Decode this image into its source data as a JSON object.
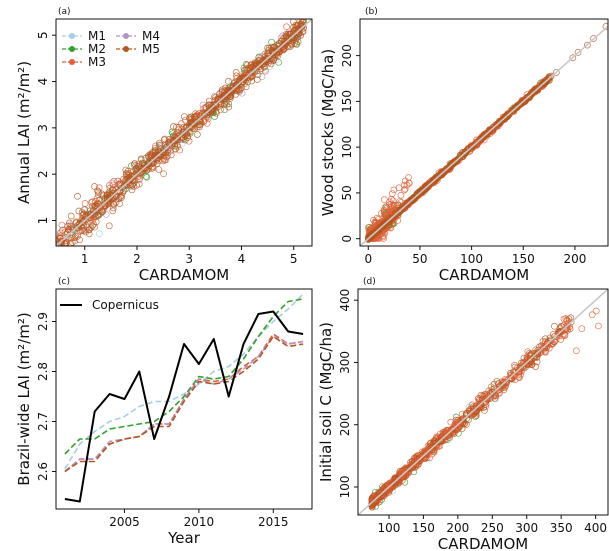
{
  "figure": {
    "colors": {
      "M1": "#a6cee3",
      "M2": "#33a02c",
      "M3": "#e0603a",
      "M4": "#b294c7",
      "M5": "#b5561f",
      "Copernicus": "#000000",
      "one_to_one": "#c8c8c8"
    }
  },
  "chart_data": [
    {
      "type": "scatter",
      "panel": "(a)",
      "xlabel": "CARDAMOM",
      "ylabel": "Annual LAI (m²/m²)",
      "xlim": [
        0.45,
        5.35
      ],
      "ylim": [
        0.45,
        5.35
      ],
      "xticks": [
        1,
        2,
        3,
        4,
        5
      ],
      "yticks": [
        1,
        2,
        3,
        4,
        5
      ],
      "legend": {
        "placement": "top-left",
        "entries": [
          "M1",
          "M2",
          "M3",
          "M4",
          "M5"
        ]
      },
      "reference_line": "1:1",
      "series": [
        {
          "name": "M1",
          "cloud": [
            0.5,
            5.2
          ]
        },
        {
          "name": "M2",
          "cloud": [
            0.5,
            5.2
          ]
        },
        {
          "name": "M3",
          "cloud": [
            0.5,
            5.2
          ]
        },
        {
          "name": "M4",
          "cloud": [
            0.5,
            5.2
          ]
        },
        {
          "name": "M5",
          "cloud": [
            0.5,
            5.2
          ]
        }
      ],
      "scatter_note_points": 0
    },
    {
      "type": "scatter",
      "panel": "(b)",
      "xlabel": "CARDAMOM",
      "ylabel": "Wood stocks (MgC/ha)",
      "xlim": [
        -8,
        232
      ],
      "ylim": [
        -8,
        240
      ],
      "xticks": [
        0,
        50,
        100,
        150,
        200
      ],
      "yticks": [
        0,
        50,
        100,
        150,
        200
      ],
      "reference_line": "1:1"
    },
    {
      "type": "line",
      "panel": "(c)",
      "xlabel": "Year",
      "ylabel": "Brazil-wide LAI (m²/m²)",
      "xlim": [
        2000.4,
        2017.6
      ],
      "ylim": [
        2.525,
        2.965
      ],
      "xticks": [
        2005,
        2010,
        2015
      ],
      "yticks": [
        2.6,
        2.7,
        2.8,
        2.9
      ],
      "legend": {
        "placement": "top-left",
        "entries": [
          "Copernicus"
        ]
      },
      "x": [
        2001,
        2002,
        2003,
        2004,
        2005,
        2006,
        2007,
        2008,
        2009,
        2010,
        2011,
        2012,
        2013,
        2014,
        2015,
        2016,
        2017
      ],
      "series": [
        {
          "name": "Copernicus",
          "values": [
            2.545,
            2.54,
            2.72,
            2.755,
            2.745,
            2.8,
            2.665,
            2.75,
            2.855,
            2.815,
            2.865,
            2.75,
            2.855,
            2.915,
            2.92,
            2.88,
            2.875
          ]
        },
        {
          "name": "M1",
          "values": [
            2.605,
            2.655,
            2.68,
            2.7,
            2.71,
            2.73,
            2.74,
            2.74,
            2.755,
            2.775,
            2.8,
            2.81,
            2.835,
            2.87,
            2.9,
            2.925,
            2.955
          ]
        },
        {
          "name": "M2",
          "values": [
            2.635,
            2.665,
            2.665,
            2.685,
            2.69,
            2.695,
            2.7,
            2.72,
            2.75,
            2.79,
            2.785,
            2.79,
            2.825,
            2.87,
            2.91,
            2.94,
            2.945
          ]
        },
        {
          "name": "M3",
          "values": [
            2.6,
            2.625,
            2.625,
            2.655,
            2.665,
            2.67,
            2.695,
            2.695,
            2.745,
            2.785,
            2.78,
            2.785,
            2.81,
            2.83,
            2.875,
            2.855,
            2.86
          ]
        },
        {
          "name": "M4",
          "values": [
            2.6,
            2.625,
            2.625,
            2.66,
            2.665,
            2.67,
            2.695,
            2.695,
            2.745,
            2.785,
            2.775,
            2.785,
            2.805,
            2.83,
            2.87,
            2.855,
            2.86
          ]
        },
        {
          "name": "M5",
          "values": [
            2.6,
            2.62,
            2.62,
            2.655,
            2.665,
            2.67,
            2.69,
            2.69,
            2.74,
            2.78,
            2.775,
            2.78,
            2.8,
            2.825,
            2.87,
            2.85,
            2.855
          ]
        }
      ]
    },
    {
      "type": "scatter",
      "panel": "(d)",
      "xlabel": "CARDAMOM",
      "ylabel": "Initial soil C (MgC/ha)",
      "xlim": [
        55,
        418
      ],
      "ylim": [
        55,
        418
      ],
      "xticks": [
        100,
        150,
        200,
        250,
        300,
        350,
        400
      ],
      "yticks": [
        100,
        200,
        300,
        400
      ],
      "reference_line": "1:1"
    }
  ]
}
